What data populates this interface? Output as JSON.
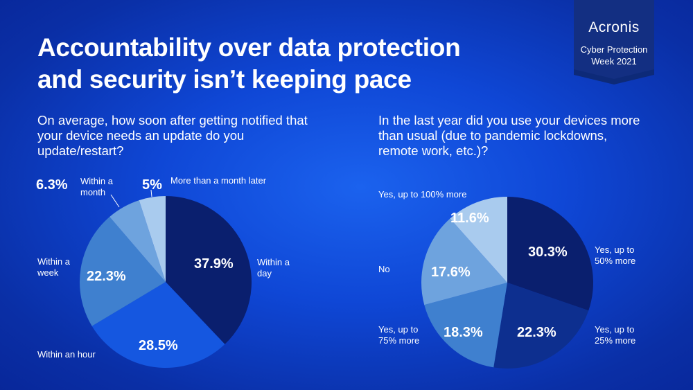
{
  "header": {
    "title_line1": "Accountability over data protection",
    "title_line2": "and security isn’t keeping pace"
  },
  "badge": {
    "logo": "Acronis",
    "line1": "Cyber Protection",
    "line2": "Week 2021"
  },
  "colors": {
    "background": "#0f47d6",
    "badge": "#0d2a78",
    "slice_darkest": "#0a1f6e",
    "slice_dark": "#0d2f8f",
    "slice_blue": "#1557e0",
    "slice_mid": "#3f80cf",
    "slice_light": "#6ea3de",
    "slice_lightest": "#a9cbee"
  },
  "chart_data": [
    {
      "type": "pie",
      "title": "On average, how soon after getting notified that your device needs an update do you update/restart?",
      "slices": [
        {
          "label": "Within a day",
          "value": 37.9,
          "display": "37.9%",
          "color": "#0a1f6e"
        },
        {
          "label": "Within an hour",
          "value": 28.5,
          "display": "28.5%",
          "color": "#1557e0"
        },
        {
          "label": "Within a week",
          "value": 22.3,
          "display": "22.3%",
          "color": "#3f80cf"
        },
        {
          "label": "Within a month",
          "value": 6.3,
          "display": "6.3%",
          "color": "#6ea3de"
        },
        {
          "label": "More than a month later",
          "value": 5.0,
          "display": "5%",
          "color": "#a9cbee"
        }
      ]
    },
    {
      "type": "pie",
      "title": "In the last year did you use your devices more than usual (due to pandemic lockdowns, remote work, etc.)?",
      "slices": [
        {
          "label": "Yes, up to 50% more",
          "value": 30.3,
          "display": "30.3%",
          "color": "#0a1f6e"
        },
        {
          "label": "Yes, up to 25% more",
          "value": 22.3,
          "display": "22.3%",
          "color": "#0d2f8f"
        },
        {
          "label": "Yes, up to 75% more",
          "value": 18.3,
          "display": "18.3%",
          "color": "#3f80cf"
        },
        {
          "label": "No",
          "value": 17.6,
          "display": "17.6%",
          "color": "#6ea3de"
        },
        {
          "label": "Yes, up to 100% more",
          "value": 11.6,
          "display": "11.6%",
          "color": "#a9cbee"
        }
      ]
    }
  ]
}
